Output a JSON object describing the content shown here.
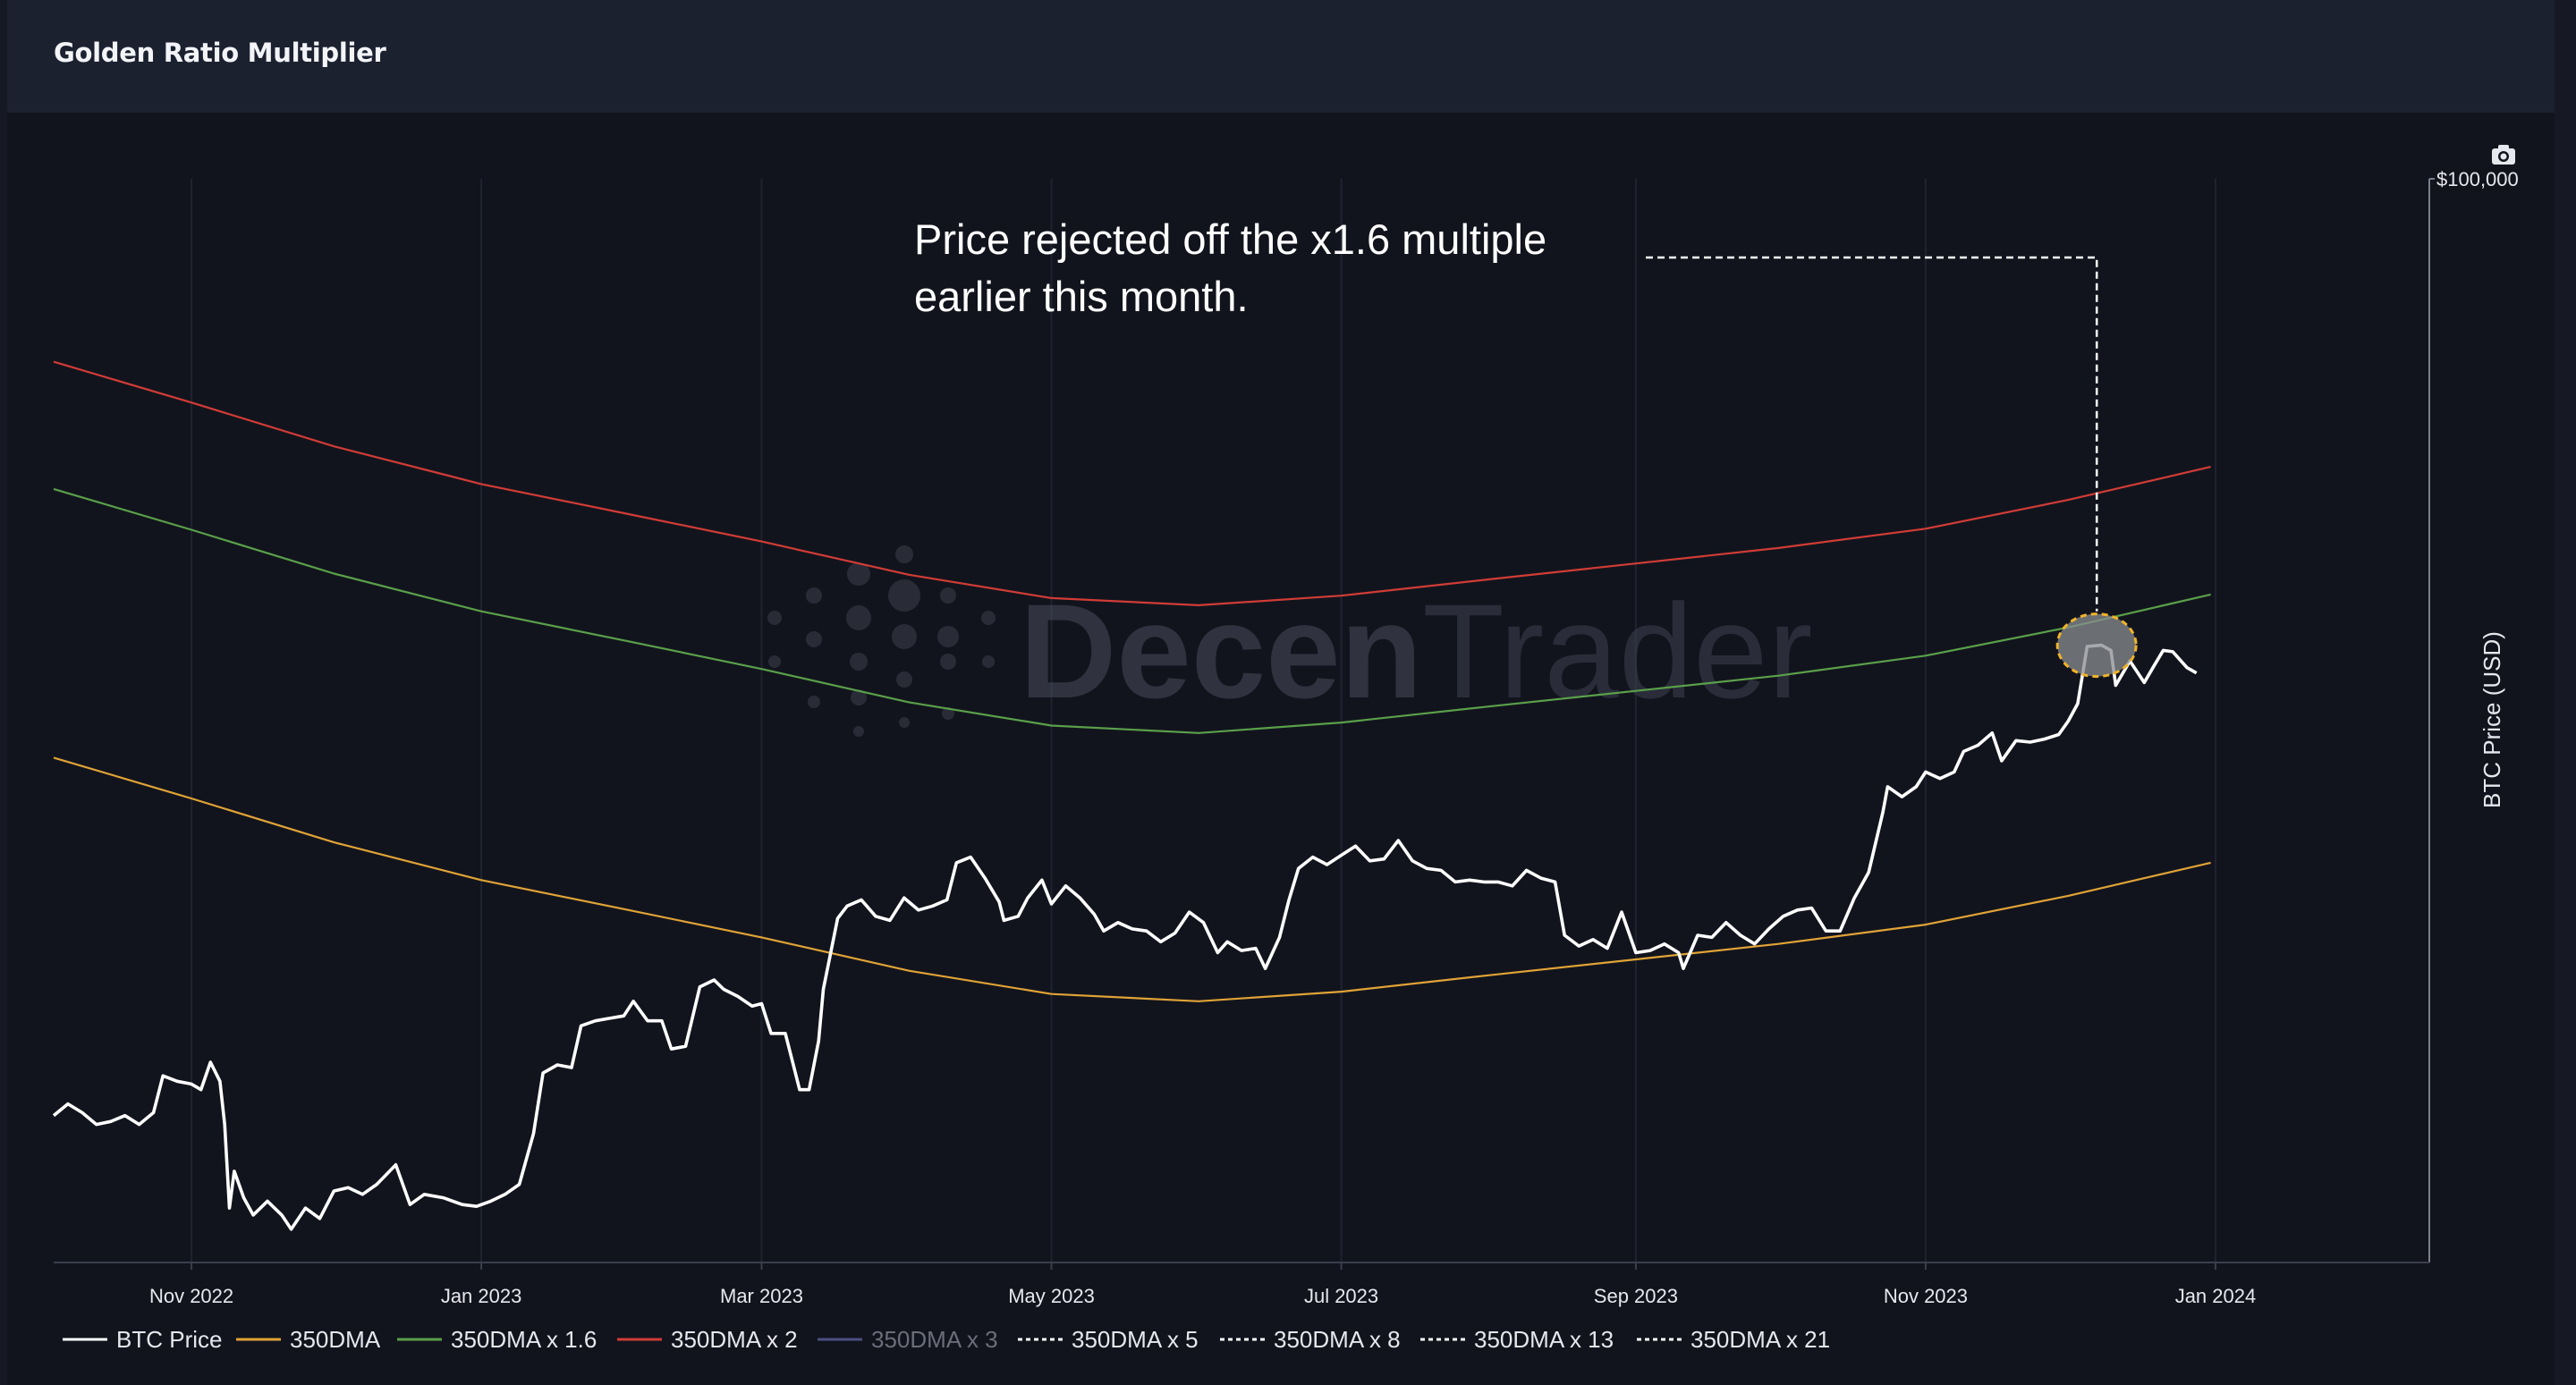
{
  "header": {
    "title": "Golden Ratio Multiplier"
  },
  "toolbar": {
    "camera_icon": "camera-icon"
  },
  "watermark": {
    "text_bold": "Decen",
    "text_light": "Trader"
  },
  "annotation": {
    "line1": "Price rejected off the x1.6 multiple",
    "line2": "earlier this month.",
    "highlight_color": "#f0b429"
  },
  "colors": {
    "btc": "#ffffff",
    "dma": "#e0a336",
    "dma16": "#5aa04a",
    "dma2": "#d13c36",
    "dma3": "#4a4f82"
  },
  "chart_data": {
    "type": "line",
    "title": "Golden Ratio Multiplier",
    "ylabel": "BTC Price (USD)",
    "yscale": "log",
    "ylim": [
      15000,
      100000
    ],
    "yticks": [
      {
        "value": 100000,
        "label": "$100,000"
      }
    ],
    "xlim": [
      "2022-10-03",
      "2024-02-15"
    ],
    "xticks": [
      {
        "date": "2022-11-01",
        "label": "Nov 2022"
      },
      {
        "date": "2023-01-01",
        "label": "Jan 2023"
      },
      {
        "date": "2023-03-01",
        "label": "Mar 2023"
      },
      {
        "date": "2023-05-01",
        "label": "May 2023"
      },
      {
        "date": "2023-07-01",
        "label": "Jul 2023"
      },
      {
        "date": "2023-09-01",
        "label": "Sep 2023"
      },
      {
        "date": "2023-11-01",
        "label": "Nov 2023"
      },
      {
        "date": "2024-01-01",
        "label": "Jan 2024"
      }
    ],
    "series": [
      {
        "name": "BTC Price",
        "key": "btc",
        "points": [
          [
            "2022-10-03",
            19400
          ],
          [
            "2022-10-06",
            19800
          ],
          [
            "2022-10-09",
            19500
          ],
          [
            "2022-10-12",
            19100
          ],
          [
            "2022-10-15",
            19200
          ],
          [
            "2022-10-18",
            19400
          ],
          [
            "2022-10-21",
            19100
          ],
          [
            "2022-10-24",
            19500
          ],
          [
            "2022-10-26",
            20800
          ],
          [
            "2022-10-29",
            20600
          ],
          [
            "2022-11-01",
            20500
          ],
          [
            "2022-11-03",
            20300
          ],
          [
            "2022-11-05",
            21300
          ],
          [
            "2022-11-07",
            20600
          ],
          [
            "2022-11-08",
            19100
          ],
          [
            "2022-11-09",
            16500
          ],
          [
            "2022-11-10",
            17600
          ],
          [
            "2022-11-12",
            16800
          ],
          [
            "2022-11-14",
            16300
          ],
          [
            "2022-11-17",
            16700
          ],
          [
            "2022-11-20",
            16300
          ],
          [
            "2022-11-22",
            15900
          ],
          [
            "2022-11-25",
            16500
          ],
          [
            "2022-11-28",
            16200
          ],
          [
            "2022-12-01",
            17000
          ],
          [
            "2022-12-04",
            17100
          ],
          [
            "2022-12-07",
            16900
          ],
          [
            "2022-12-10",
            17200
          ],
          [
            "2022-12-14",
            17800
          ],
          [
            "2022-12-17",
            16600
          ],
          [
            "2022-12-20",
            16900
          ],
          [
            "2022-12-24",
            16800
          ],
          [
            "2022-12-28",
            16600
          ],
          [
            "2022-12-31",
            16550
          ],
          [
            "2023-01-03",
            16700
          ],
          [
            "2023-01-06",
            16900
          ],
          [
            "2023-01-09",
            17200
          ],
          [
            "2023-01-12",
            18800
          ],
          [
            "2023-01-14",
            20900
          ],
          [
            "2023-01-17",
            21200
          ],
          [
            "2023-01-20",
            21100
          ],
          [
            "2023-01-22",
            22700
          ],
          [
            "2023-01-25",
            22900
          ],
          [
            "2023-01-28",
            23000
          ],
          [
            "2023-01-31",
            23100
          ],
          [
            "2023-02-02",
            23700
          ],
          [
            "2023-02-05",
            22900
          ],
          [
            "2023-02-08",
            22900
          ],
          [
            "2023-02-10",
            21800
          ],
          [
            "2023-02-13",
            21900
          ],
          [
            "2023-02-16",
            24300
          ],
          [
            "2023-02-19",
            24600
          ],
          [
            "2023-02-21",
            24200
          ],
          [
            "2023-02-24",
            23900
          ],
          [
            "2023-02-27",
            23500
          ],
          [
            "2023-03-01",
            23600
          ],
          [
            "2023-03-03",
            22400
          ],
          [
            "2023-03-06",
            22400
          ],
          [
            "2023-03-09",
            20300
          ],
          [
            "2023-03-11",
            20300
          ],
          [
            "2023-03-13",
            22100
          ],
          [
            "2023-03-14",
            24200
          ],
          [
            "2023-03-17",
            27400
          ],
          [
            "2023-03-19",
            28000
          ],
          [
            "2023-03-22",
            28300
          ],
          [
            "2023-03-25",
            27500
          ],
          [
            "2023-03-28",
            27300
          ],
          [
            "2023-03-31",
            28400
          ],
          [
            "2023-04-03",
            27800
          ],
          [
            "2023-04-06",
            28000
          ],
          [
            "2023-04-09",
            28300
          ],
          [
            "2023-04-11",
            30200
          ],
          [
            "2023-04-14",
            30500
          ],
          [
            "2023-04-17",
            29400
          ],
          [
            "2023-04-20",
            28200
          ],
          [
            "2023-04-21",
            27300
          ],
          [
            "2023-04-24",
            27500
          ],
          [
            "2023-04-26",
            28400
          ],
          [
            "2023-04-29",
            29300
          ],
          [
            "2023-05-01",
            28100
          ],
          [
            "2023-05-04",
            29000
          ],
          [
            "2023-05-07",
            28400
          ],
          [
            "2023-05-10",
            27600
          ],
          [
            "2023-05-12",
            26800
          ],
          [
            "2023-05-15",
            27200
          ],
          [
            "2023-05-18",
            26900
          ],
          [
            "2023-05-21",
            26800
          ],
          [
            "2023-05-24",
            26300
          ],
          [
            "2023-05-27",
            26700
          ],
          [
            "2023-05-30",
            27700
          ],
          [
            "2023-06-02",
            27200
          ],
          [
            "2023-06-05",
            25800
          ],
          [
            "2023-06-07",
            26300
          ],
          [
            "2023-06-10",
            25900
          ],
          [
            "2023-06-13",
            26000
          ],
          [
            "2023-06-15",
            25100
          ],
          [
            "2023-06-18",
            26500
          ],
          [
            "2023-06-20",
            28300
          ],
          [
            "2023-06-22",
            29900
          ],
          [
            "2023-06-25",
            30500
          ],
          [
            "2023-06-28",
            30100
          ],
          [
            "2023-07-01",
            30600
          ],
          [
            "2023-07-04",
            31100
          ],
          [
            "2023-07-07",
            30300
          ],
          [
            "2023-07-10",
            30400
          ],
          [
            "2023-07-13",
            31400
          ],
          [
            "2023-07-16",
            30300
          ],
          [
            "2023-07-19",
            29900
          ],
          [
            "2023-07-22",
            29800
          ],
          [
            "2023-07-25",
            29200
          ],
          [
            "2023-07-28",
            29300
          ],
          [
            "2023-07-31",
            29200
          ],
          [
            "2023-08-03",
            29200
          ],
          [
            "2023-08-06",
            29000
          ],
          [
            "2023-08-09",
            29800
          ],
          [
            "2023-08-12",
            29400
          ],
          [
            "2023-08-15",
            29200
          ],
          [
            "2023-08-17",
            26600
          ],
          [
            "2023-08-20",
            26100
          ],
          [
            "2023-08-23",
            26400
          ],
          [
            "2023-08-26",
            26000
          ],
          [
            "2023-08-29",
            27700
          ],
          [
            "2023-09-01",
            25800
          ],
          [
            "2023-09-04",
            25900
          ],
          [
            "2023-09-07",
            26200
          ],
          [
            "2023-09-10",
            25800
          ],
          [
            "2023-09-11",
            25100
          ],
          [
            "2023-09-14",
            26600
          ],
          [
            "2023-09-17",
            26500
          ],
          [
            "2023-09-20",
            27200
          ],
          [
            "2023-09-23",
            26600
          ],
          [
            "2023-09-26",
            26200
          ],
          [
            "2023-09-29",
            26900
          ],
          [
            "2023-10-02",
            27500
          ],
          [
            "2023-10-05",
            27800
          ],
          [
            "2023-10-08",
            27900
          ],
          [
            "2023-10-11",
            26800
          ],
          [
            "2023-10-14",
            26800
          ],
          [
            "2023-10-17",
            28400
          ],
          [
            "2023-10-20",
            29700
          ],
          [
            "2023-10-23",
            33000
          ],
          [
            "2023-10-24",
            34500
          ],
          [
            "2023-10-27",
            33900
          ],
          [
            "2023-10-30",
            34500
          ],
          [
            "2023-11-01",
            35400
          ],
          [
            "2023-11-04",
            35000
          ],
          [
            "2023-11-07",
            35400
          ],
          [
            "2023-11-09",
            36700
          ],
          [
            "2023-11-12",
            37100
          ],
          [
            "2023-11-15",
            37900
          ],
          [
            "2023-11-17",
            36100
          ],
          [
            "2023-11-20",
            37400
          ],
          [
            "2023-11-23",
            37300
          ],
          [
            "2023-11-26",
            37500
          ],
          [
            "2023-11-29",
            37800
          ],
          [
            "2023-12-01",
            38700
          ],
          [
            "2023-12-03",
            39900
          ],
          [
            "2023-12-05",
            44100
          ],
          [
            "2023-12-08",
            44200
          ],
          [
            "2023-12-10",
            43800
          ],
          [
            "2023-12-11",
            41200
          ],
          [
            "2023-12-14",
            43000
          ],
          [
            "2023-12-17",
            41400
          ],
          [
            "2023-12-19",
            42600
          ],
          [
            "2023-12-21",
            43800
          ],
          [
            "2023-12-23",
            43700
          ],
          [
            "2023-12-26",
            42500
          ],
          [
            "2023-12-28",
            42100
          ]
        ]
      },
      {
        "name": "350DMA",
        "key": "dma",
        "points": [
          [
            "2022-10-03",
            36300
          ],
          [
            "2022-11-01",
            33800
          ],
          [
            "2022-12-01",
            31300
          ],
          [
            "2023-01-01",
            29300
          ],
          [
            "2023-02-01",
            27800
          ],
          [
            "2023-03-01",
            26500
          ],
          [
            "2023-04-01",
            25000
          ],
          [
            "2023-05-01",
            24000
          ],
          [
            "2023-06-01",
            23700
          ],
          [
            "2023-07-01",
            24100
          ],
          [
            "2023-08-01",
            24800
          ],
          [
            "2023-09-01",
            25500
          ],
          [
            "2023-10-01",
            26200
          ],
          [
            "2023-11-01",
            27100
          ],
          [
            "2023-12-01",
            28500
          ],
          [
            "2023-12-31",
            30200
          ]
        ]
      },
      {
        "name": "350DMA x 1.6",
        "key": "dma16",
        "points": [
          [
            "2022-10-03",
            58100
          ],
          [
            "2022-11-01",
            54100
          ],
          [
            "2022-12-01",
            50100
          ],
          [
            "2023-01-01",
            46900
          ],
          [
            "2023-02-01",
            44500
          ],
          [
            "2023-03-01",
            42400
          ],
          [
            "2023-04-01",
            40000
          ],
          [
            "2023-05-01",
            38400
          ],
          [
            "2023-06-01",
            37900
          ],
          [
            "2023-07-01",
            38600
          ],
          [
            "2023-08-01",
            39700
          ],
          [
            "2023-09-01",
            40800
          ],
          [
            "2023-10-01",
            41900
          ],
          [
            "2023-11-01",
            43400
          ],
          [
            "2023-12-01",
            45600
          ],
          [
            "2023-12-31",
            48300
          ]
        ]
      },
      {
        "name": "350DMA x 2",
        "key": "dma2",
        "points": [
          [
            "2022-10-03",
            72600
          ],
          [
            "2022-11-01",
            67600
          ],
          [
            "2022-12-01",
            62600
          ],
          [
            "2023-01-01",
            58600
          ],
          [
            "2023-02-01",
            55600
          ],
          [
            "2023-03-01",
            53000
          ],
          [
            "2023-04-01",
            50000
          ],
          [
            "2023-05-01",
            48000
          ],
          [
            "2023-06-01",
            47400
          ],
          [
            "2023-07-01",
            48200
          ],
          [
            "2023-08-01",
            49600
          ],
          [
            "2023-09-01",
            51000
          ],
          [
            "2023-10-01",
            52400
          ],
          [
            "2023-11-01",
            54200
          ],
          [
            "2023-12-01",
            57000
          ],
          [
            "2023-12-31",
            60400
          ]
        ]
      }
    ],
    "legend": [
      {
        "label": "BTC Price",
        "style": "solid",
        "key": "btc"
      },
      {
        "label": "350DMA",
        "style": "solid",
        "key": "dma"
      },
      {
        "label": "350DMA x 1.6",
        "style": "solid",
        "key": "dma16"
      },
      {
        "label": "350DMA x 2",
        "style": "solid",
        "key": "dma2"
      },
      {
        "label": "350DMA x 3",
        "style": "solid",
        "key": "dma3",
        "hidden": true
      },
      {
        "label": "350DMA x 5",
        "style": "dashed",
        "key": "btc"
      },
      {
        "label": "350DMA x 8",
        "style": "dashed",
        "key": "btc"
      },
      {
        "label": "350DMA x 13",
        "style": "dashed",
        "key": "btc"
      },
      {
        "label": "350DMA x 21",
        "style": "dashed",
        "key": "btc"
      }
    ],
    "legend_position": "bottom-left",
    "callout": {
      "date": "2023-12-07",
      "value": 44200
    }
  }
}
